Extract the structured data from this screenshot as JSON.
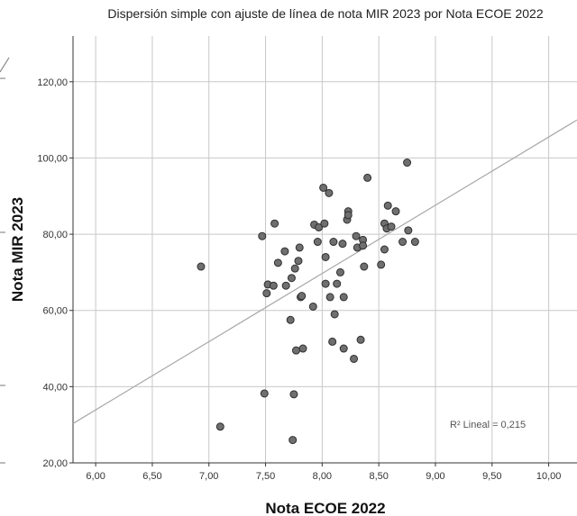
{
  "chart_data": {
    "type": "scatter",
    "title": "Dispersión simple con ajuste de línea de nota MIR 2023 por Nota ECOE 2022",
    "xlabel": "Nota ECOE 2022",
    "ylabel": "Nota MIR 2023",
    "xlim": [
      5.8,
      10.25
    ],
    "ylim": [
      20,
      132
    ],
    "xticks": [
      6.0,
      6.5,
      7.0,
      7.5,
      8.0,
      8.5,
      9.0,
      9.5,
      10.0
    ],
    "xtick_labels": [
      "6,00",
      "6,50",
      "7,00",
      "7,50",
      "8,00",
      "8,50",
      "9,00",
      "9,50",
      "10,00"
    ],
    "yticks": [
      20,
      40,
      60,
      80,
      100,
      120
    ],
    "ytick_labels": [
      "20,00",
      "40,00",
      "60,00",
      "80,00",
      "100,00",
      "120,00"
    ],
    "grid": true,
    "point_color": "#6f6f6f",
    "line_color": "#a8a8a8",
    "fit_line": {
      "slope": 17.9,
      "intercept": -73.5
    },
    "annotation": "R² Lineal = 0,215",
    "points": [
      [
        6.93,
        71.5
      ],
      [
        7.1,
        29.5
      ],
      [
        7.47,
        79.5
      ],
      [
        7.49,
        38.2
      ],
      [
        7.51,
        64.5
      ],
      [
        7.52,
        66.8
      ],
      [
        7.57,
        66.5
      ],
      [
        7.58,
        82.8
      ],
      [
        7.61,
        72.5
      ],
      [
        7.67,
        75.5
      ],
      [
        7.68,
        66.5
      ],
      [
        7.72,
        57.5
      ],
      [
        7.73,
        68.5
      ],
      [
        7.74,
        26.0
      ],
      [
        7.75,
        38.0
      ],
      [
        7.76,
        71.0
      ],
      [
        7.77,
        49.5
      ],
      [
        7.79,
        73.0
      ],
      [
        7.8,
        76.5
      ],
      [
        7.81,
        63.5
      ],
      [
        7.82,
        63.8
      ],
      [
        7.83,
        50.0
      ],
      [
        7.92,
        61.0
      ],
      [
        7.93,
        82.5
      ],
      [
        7.96,
        78.0
      ],
      [
        7.97,
        81.8
      ],
      [
        8.01,
        92.2
      ],
      [
        8.02,
        82.8
      ],
      [
        8.03,
        74.0
      ],
      [
        8.03,
        67.0
      ],
      [
        8.06,
        90.8
      ],
      [
        8.07,
        63.5
      ],
      [
        8.09,
        51.8
      ],
      [
        8.1,
        78.0
      ],
      [
        8.11,
        59.0
      ],
      [
        8.13,
        67.0
      ],
      [
        8.16,
        70.0
      ],
      [
        8.18,
        77.5
      ],
      [
        8.19,
        50.0
      ],
      [
        8.19,
        63.5
      ],
      [
        8.22,
        83.8
      ],
      [
        8.23,
        86.0
      ],
      [
        8.23,
        85.0
      ],
      [
        8.28,
        47.3
      ],
      [
        8.3,
        79.5
      ],
      [
        8.31,
        76.5
      ],
      [
        8.34,
        52.3
      ],
      [
        8.36,
        78.5
      ],
      [
        8.36,
        77.0
      ],
      [
        8.37,
        71.5
      ],
      [
        8.4,
        94.8
      ],
      [
        8.52,
        72.0
      ],
      [
        8.55,
        76.0
      ],
      [
        8.55,
        82.8
      ],
      [
        8.57,
        81.5
      ],
      [
        8.58,
        87.5
      ],
      [
        8.61,
        82.0
      ],
      [
        8.65,
        86.0
      ],
      [
        8.71,
        78.0
      ],
      [
        8.75,
        98.8
      ],
      [
        8.76,
        81.0
      ],
      [
        8.82,
        78.0
      ]
    ]
  }
}
